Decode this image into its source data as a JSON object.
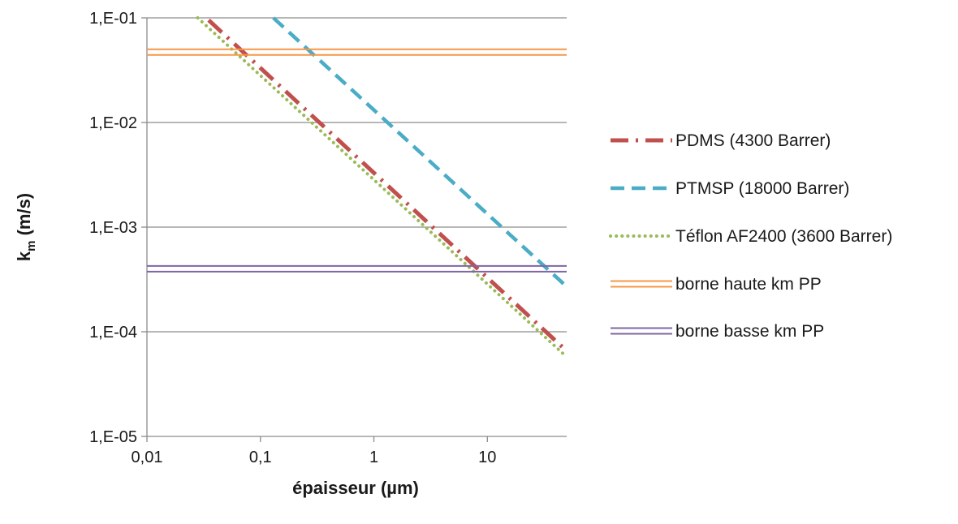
{
  "chart_data": {
    "type": "line",
    "title": "",
    "xlabel": "épaisseur (µm)",
    "ylabel": {
      "main": "k",
      "sub": "m",
      "suffix": " (m/s)"
    },
    "x_scale": "log",
    "y_scale": "log",
    "xlim": [
      0.01,
      50
    ],
    "ylim": [
      1e-05,
      0.1
    ],
    "x_ticks": [
      0.01,
      0.1,
      1,
      10
    ],
    "x_tick_labels": [
      "0,01",
      "0,1",
      "1",
      "10"
    ],
    "y_ticks": [
      1e-05,
      0.0001,
      0.001,
      0.01,
      0.1
    ],
    "y_tick_labels": [
      "1,E-05",
      "1,E-04",
      "1,E-03",
      "1,E-02",
      "1,E-01"
    ],
    "grid": "horizontal major gridlines",
    "legend_position": "right",
    "series": [
      {
        "name": "PDMS (4300 Barrer)",
        "style": "dash-dot",
        "color": "#c0504d",
        "x": [
          0.035,
          50
        ],
        "y": [
          0.095,
          6.55e-05
        ]
      },
      {
        "name": "PTMSP (18000 Barrer)",
        "style": "dash",
        "color": "#4bacc6",
        "x": [
          0.13,
          50
        ],
        "y": [
          0.1,
          0.00027
        ]
      },
      {
        "name": "Téflon AF2400 (3600 Barrer)",
        "style": "dot",
        "color": "#9bbb59",
        "x": [
          0.028,
          50
        ],
        "y": [
          0.1,
          5.75e-05
        ]
      },
      {
        "name": "borne haute km PP",
        "style": "double",
        "color": "#f79646",
        "x": [
          0.01,
          50
        ],
        "y": [
          0.047,
          0.047
        ]
      },
      {
        "name": "borne basse km PP",
        "style": "double",
        "color": "#8064a2",
        "x": [
          0.01,
          50
        ],
        "y": [
          0.0004,
          0.0004
        ]
      }
    ]
  }
}
